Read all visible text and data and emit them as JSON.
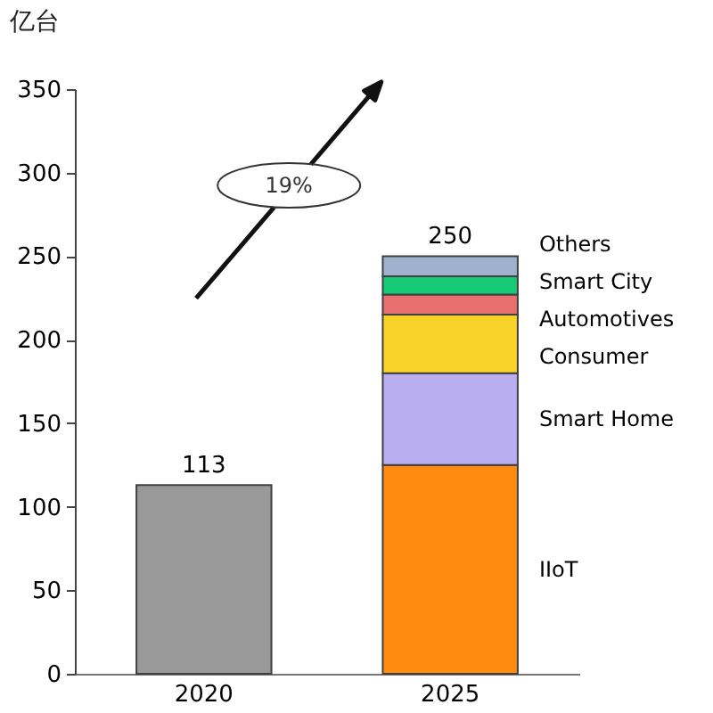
{
  "chart_data": {
    "type": "bar",
    "stacked": true,
    "ylabel": "亿台",
    "categories": [
      "2020",
      "2025"
    ],
    "series": [
      {
        "color": "#999999",
        "values": [
          113,
          null
        ]
      },
      {
        "name": "IIoT",
        "color": "#ff8c0f",
        "values": [
          null,
          125
        ]
      },
      {
        "name": "Smart Home",
        "color": "#b9aef0",
        "values": [
          null,
          55
        ]
      },
      {
        "name": "Consumer",
        "color": "#fad32a",
        "values": [
          null,
          35
        ]
      },
      {
        "name": "Automotives",
        "color": "#e7706f",
        "values": [
          null,
          12
        ]
      },
      {
        "name": "Smart City",
        "color": "#15c975",
        "values": [
          null,
          11
        ]
      },
      {
        "name": "Others",
        "color": "#9eb1cf",
        "values": [
          null,
          12
        ]
      }
    ],
    "totals": [
      "113",
      "250"
    ],
    "ylim": [
      0,
      350
    ],
    "yticks": [
      0,
      50,
      100,
      150,
      200,
      250,
      300,
      350
    ],
    "grid": false,
    "legend": false,
    "annotations": [
      "19%"
    ]
  }
}
